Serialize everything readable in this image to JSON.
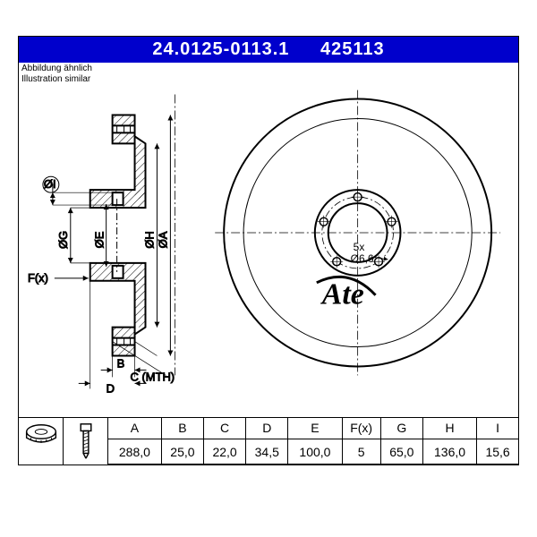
{
  "header": {
    "part_number": "24.0125-0113.1",
    "short_code": "425113",
    "bg_color": "#0000cc",
    "text_color": "#ffffff"
  },
  "subtitle": {
    "line1": "Abbildung ähnlich",
    "line2": "Illustration similar"
  },
  "disc": {
    "bolt_count": "5x",
    "bolt_hole": "Ø6,6",
    "dim_labels": {
      "A": "ØA",
      "H": "ØH",
      "E": "ØE",
      "G": "ØG",
      "I": "ØI",
      "F": "F(x)",
      "B": "B",
      "D": "D",
      "C_MTH": "C (MTH)"
    }
  },
  "brand": "Ate",
  "table": {
    "columns": [
      "A",
      "B",
      "C",
      "D",
      "E",
      "F(x)",
      "G",
      "H",
      "I"
    ],
    "values": [
      "288,0",
      "25,0",
      "22,0",
      "34,5",
      "100,0",
      "5",
      "65,0",
      "136,0",
      "15,6"
    ]
  },
  "style": {
    "stroke": "#000000",
    "thin": 1,
    "thick": 2,
    "font_small": 12,
    "font_label": 13
  }
}
